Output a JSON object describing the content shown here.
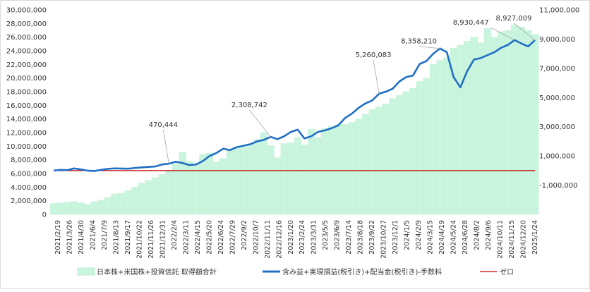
{
  "chart_data": {
    "type": "area",
    "y_left": {
      "ticks": [
        "0",
        "2,000,000",
        "4,000,000",
        "6,000,000",
        "8,000,000",
        "10,000,000",
        "12,000,000",
        "14,000,000",
        "16,000,000",
        "18,000,000",
        "20,000,000",
        "22,000,000",
        "24,000,000",
        "26,000,000",
        "28,000,000",
        "30,000,000"
      ],
      "range": [
        0,
        30000000
      ]
    },
    "y_right": {
      "ticks": [
        "-1,000,000",
        "1,000,000",
        "3,000,000",
        "5,000,000",
        "7,000,000",
        "9,000,000",
        "11,000,000"
      ],
      "range": [
        -3000000,
        11000000
      ]
    },
    "x_labels": [
      "2021/2/19",
      "2021/3/26",
      "2021/4/30",
      "2021/6/4",
      "2021/7/9",
      "2021/8/13",
      "2021/9/17",
      "2021/10/22",
      "2021/11/26",
      "2021/12/31",
      "2022/2/4",
      "2022/3/11",
      "2022/4/15",
      "2022/5/20",
      "2022/6/24",
      "2022/7/29",
      "2022/9/2",
      "2022/10/7",
      "2022/11/11",
      "2022/12/16",
      "2023/1/20",
      "2023/2/24",
      "2023/3/31",
      "2023/5/5",
      "2023/6/9",
      "2023/7/14",
      "2023/8/18",
      "2023/9/22",
      "2023/10/27",
      "2023/12/1",
      "2024/1/5",
      "2024/2/9",
      "2024/3/15",
      "2024/4/19",
      "2024/5/24",
      "2024/6/28",
      "2024/8/2",
      "2024/9/6",
      "2024/10/11",
      "2024/11/15",
      "2024/12/20",
      "2025/1/24"
    ],
    "series": [
      {
        "name": "日本株+米国株+投資信託 取得額合計",
        "axis": "left",
        "color": "#c9f4dd",
        "values": [
          1600000,
          1700000,
          1800000,
          1900000,
          1700000,
          1500000,
          1900000,
          2100000,
          2500000,
          3000000,
          3100000,
          3500000,
          4000000,
          4600000,
          5000000,
          5400000,
          5900000,
          6500000,
          7400000,
          9100000,
          7800000,
          7300000,
          8800000,
          9000000,
          7700000,
          8200000,
          9600000,
          9800000,
          9900000,
          10300000,
          11000000,
          12000000,
          10100000,
          8300000,
          10400000,
          10500000,
          11300000,
          10200000,
          12500000,
          11300000,
          12600000,
          12900000,
          13200000,
          13200000,
          13500000,
          14000000,
          14700000,
          15400000,
          15800000,
          16200000,
          17000000,
          17500000,
          18000000,
          18500000,
          19500000,
          20000000,
          22000000,
          22600000,
          23000000,
          24400000,
          24800000,
          25400000,
          26000000,
          25200000,
          27300000,
          26000000,
          26800000,
          27000000,
          27800000,
          27500000,
          27000000,
          26400000
        ]
      },
      {
        "name": "含み益+実現損益(税引き)+配当金(税引き)-手数料",
        "axis": "right",
        "color": "#1f6fc5",
        "values": [
          0,
          50000,
          30000,
          150000,
          80000,
          0,
          -30000,
          50000,
          120000,
          150000,
          140000,
          130000,
          180000,
          220000,
          250000,
          280000,
          420000,
          470444,
          600000,
          520000,
          380000,
          420000,
          650000,
          1000000,
          1200000,
          1500000,
          1400000,
          1600000,
          1700000,
          1800000,
          2000000,
          2100000,
          2308742,
          2150000,
          2350000,
          2650000,
          2800000,
          2200000,
          2350000,
          2650000,
          2750000,
          2900000,
          3100000,
          3600000,
          3900000,
          4300000,
          4600000,
          4800000,
          5260083,
          5400000,
          5600000,
          6100000,
          6400000,
          6500000,
          7300000,
          7500000,
          8000000,
          8358210,
          8100000,
          6400000,
          5700000,
          6800000,
          7600000,
          7700000,
          7900000,
          8100000,
          8400000,
          8600000,
          8930447,
          8700000,
          8500000,
          8927009
        ]
      },
      {
        "name": "ゼロ",
        "axis": "right",
        "color": "#c00000",
        "values": [
          0
        ]
      }
    ],
    "annotations": [
      "470,444",
      "2,308,742",
      "5,260,083",
      "8,358,210",
      "8,930,447",
      "8,927,009"
    ],
    "grid": false,
    "legend_position": "bottom"
  }
}
